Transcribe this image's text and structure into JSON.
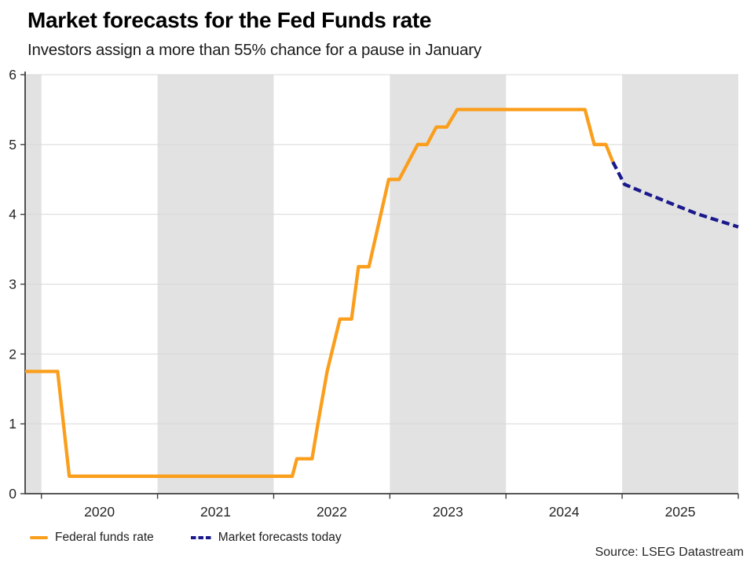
{
  "chart_data": {
    "type": "line",
    "title": "Market forecasts for the Fed Funds rate",
    "subtitle": "Investors assign a more than 55% chance for a pause in January",
    "source": "Source: LSEG Datastream",
    "grid": "horizontal",
    "legend_position": "bottom-left",
    "x_axis": {
      "range": [
        2019.86,
        2026.0
      ],
      "year_labels": [
        "2020",
        "2021",
        "2022",
        "2023",
        "2024",
        "2025"
      ],
      "boundary_ticks": [
        2020,
        2021,
        2022,
        2023,
        2024,
        2025,
        2026
      ],
      "shaded_year_bands": [
        2019,
        2021,
        2023,
        2025
      ]
    },
    "y_axis": {
      "range": [
        0,
        6
      ],
      "ticks": [
        "0",
        "1",
        "2",
        "3",
        "4",
        "5",
        "6"
      ],
      "gridlines": [
        1,
        2,
        3,
        4,
        5,
        6
      ]
    },
    "series": [
      {
        "name": "Federal funds rate",
        "style": "solid",
        "color": "#FA9E1C",
        "points": [
          [
            2019.86,
            1.75
          ],
          [
            2020.14,
            1.75
          ],
          [
            2020.24,
            0.25
          ],
          [
            2022.16,
            0.25
          ],
          [
            2022.2,
            0.5
          ],
          [
            2022.33,
            0.5
          ],
          [
            2022.38,
            1.0
          ],
          [
            2022.46,
            1.75
          ],
          [
            2022.57,
            2.5
          ],
          [
            2022.67,
            2.5
          ],
          [
            2022.73,
            3.25
          ],
          [
            2022.82,
            3.25
          ],
          [
            2022.99,
            4.5
          ],
          [
            2023.08,
            4.5
          ],
          [
            2023.24,
            5.0
          ],
          [
            2023.32,
            5.0
          ],
          [
            2023.4,
            5.25
          ],
          [
            2023.49,
            5.25
          ],
          [
            2023.58,
            5.5
          ],
          [
            2024.68,
            5.5
          ],
          [
            2024.76,
            5.0
          ],
          [
            2024.86,
            5.0
          ],
          [
            2024.92,
            4.75
          ]
        ]
      },
      {
        "name": "Market forecasts today",
        "style": "dashed",
        "color": "#1A1A8C",
        "points": [
          [
            2024.92,
            4.75
          ],
          [
            2025.02,
            4.43
          ],
          [
            2025.19,
            4.31
          ],
          [
            2025.64,
            4.01
          ],
          [
            2026.0,
            3.82
          ]
        ]
      }
    ]
  },
  "colors": {
    "band": "#E2E2E2",
    "gridline": "#D8D8D8",
    "axis": "#404040",
    "tick_text": "#262626"
  }
}
